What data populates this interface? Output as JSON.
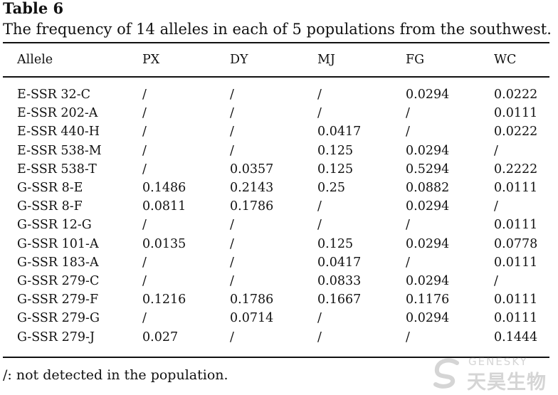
{
  "table": {
    "label": "Table 6",
    "caption": "The frequency of 14 alleles in each of 5 populations from the southwest.",
    "headers": [
      "Allele",
      "PX",
      "DY",
      "MJ",
      "FG",
      "WC"
    ],
    "rows": [
      [
        "E-SSR 32-C",
        "/",
        "/",
        "/",
        "0.0294",
        "0.0222"
      ],
      [
        "E-SSR 202-A",
        "/",
        "/",
        "/",
        "/",
        "0.0111"
      ],
      [
        "E-SSR 440-H",
        "/",
        "/",
        "0.0417",
        "/",
        "0.0222"
      ],
      [
        "E-SSR 538-M",
        "/",
        "/",
        "0.125",
        "0.0294",
        "/"
      ],
      [
        "E-SSR 538-T",
        "/",
        "0.0357",
        "0.125",
        "0.5294",
        "0.2222"
      ],
      [
        "G-SSR 8-E",
        "0.1486",
        "0.2143",
        "0.25",
        "0.0882",
        "0.0111"
      ],
      [
        "G-SSR 8-F",
        "0.0811",
        "0.1786",
        "/",
        "0.0294",
        "/"
      ],
      [
        "G-SSR 12-G",
        "/",
        "/",
        "/",
        "/",
        "0.0111"
      ],
      [
        "G-SSR 101-A",
        "0.0135",
        "/",
        "0.125",
        "0.0294",
        "0.0778"
      ],
      [
        "G-SSR 183-A",
        "/",
        "/",
        "0.0417",
        "/",
        "0.0111"
      ],
      [
        "G-SSR 279-C",
        "/",
        "/",
        "0.0833",
        "0.0294",
        "/"
      ],
      [
        "G-SSR 279-F",
        "0.1216",
        "0.1786",
        "0.1667",
        "0.1176",
        "0.0111"
      ],
      [
        "G-SSR 279-G",
        "/",
        "0.0714",
        "/",
        "0.0294",
        "0.0111"
      ],
      [
        "G-SSR 279-J",
        "0.027",
        "/",
        "/",
        "/",
        "0.1444"
      ]
    ],
    "footnote": "/: not detected in the population."
  },
  "watermark": {
    "brand_en": "GENESKY",
    "brand_cn": "天昊生物",
    "icon": "swirl-logo-icon",
    "color": "#6a6a6a"
  }
}
